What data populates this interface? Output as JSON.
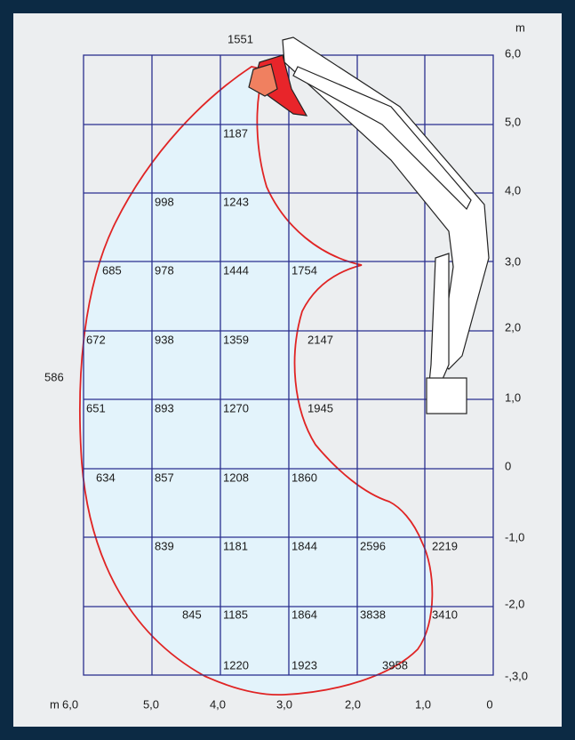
{
  "top_unit": "m",
  "bottom_unit": "m",
  "height_labels": [
    "6,0",
    "5,0",
    "4,0",
    "3,0",
    "2,0",
    "1,0",
    "0",
    "-1,0",
    "-2,0",
    "-,3,0"
  ],
  "reach_labels": [
    "6,0",
    "5,0",
    "4,0",
    "3,0",
    "2,0",
    "1,0",
    "0"
  ],
  "side_value": "586",
  "capacities": [
    "1551",
    "1187",
    "998",
    "1243",
    "685",
    "978",
    "1444",
    "1754",
    "672",
    "938",
    "1359",
    "2147",
    "651",
    "893",
    "1270",
    "1945",
    "634",
    "857",
    "1208",
    "1860",
    "839",
    "1181",
    "1844",
    "2596",
    "2219",
    "845",
    "1185",
    "1864",
    "3838",
    "3410",
    "1220",
    "1923",
    "3958"
  ]
}
